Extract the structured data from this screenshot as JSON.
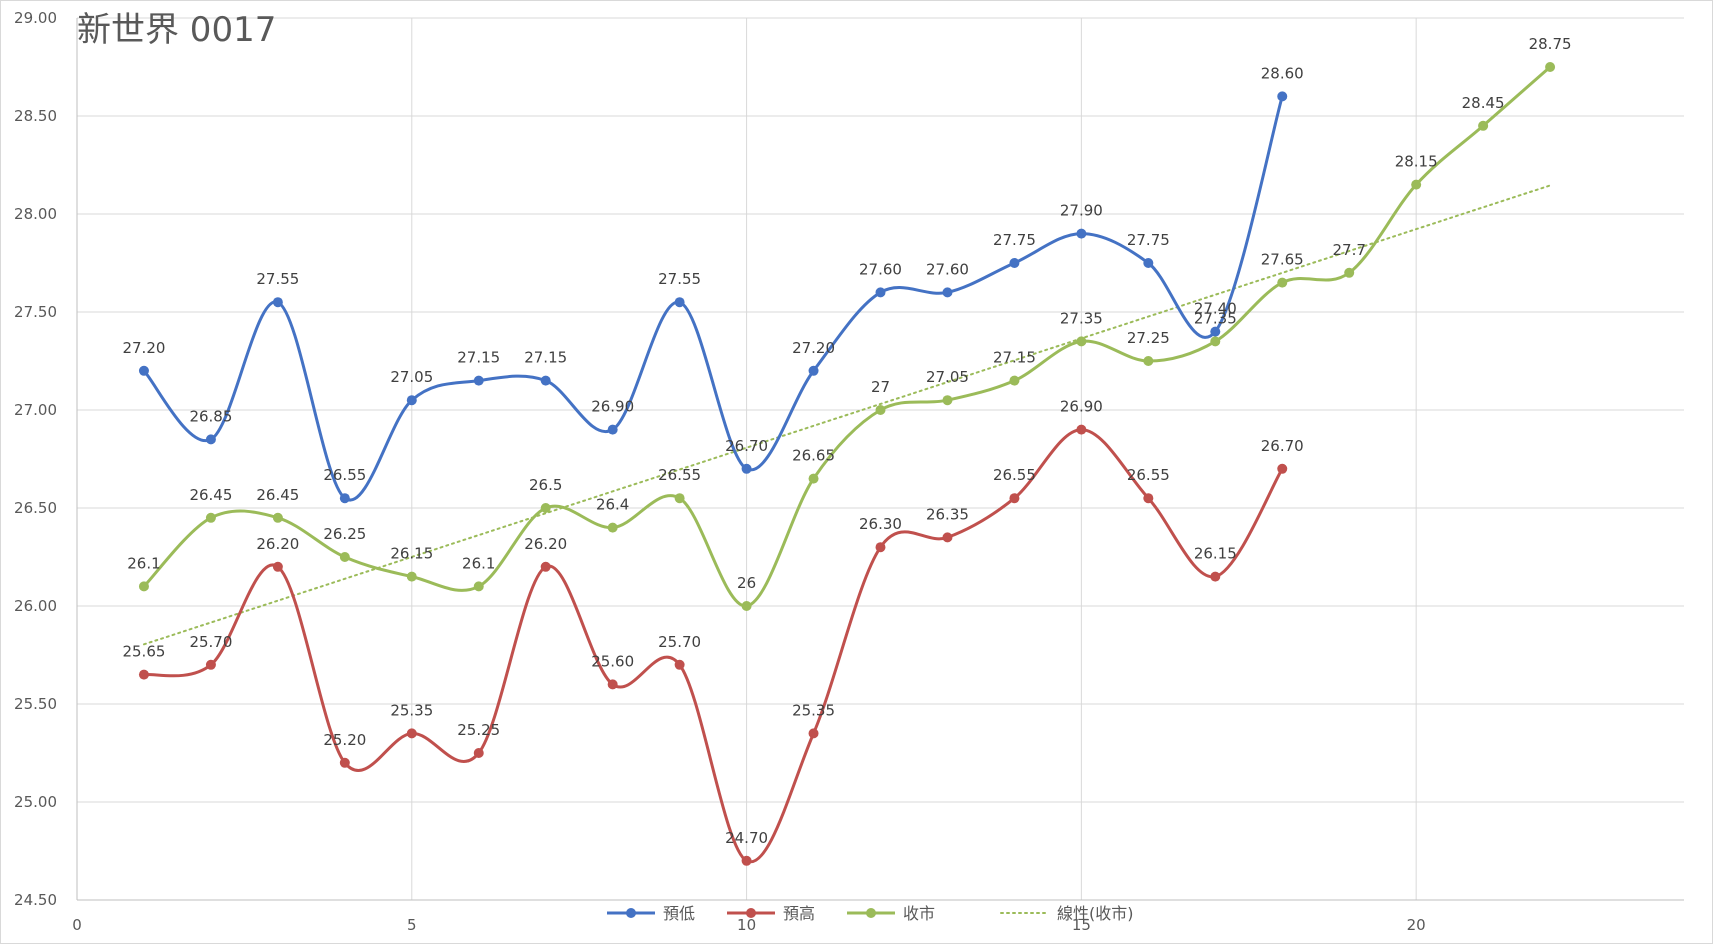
{
  "chart_data": {
    "type": "line",
    "title": "新世界 0017",
    "xlabel": "",
    "ylabel": "",
    "xlim": [
      0,
      24
    ],
    "ylim": [
      24.5,
      29.0
    ],
    "x_ticks": [
      0,
      5,
      10,
      15,
      20
    ],
    "y_ticks": [
      "24.50",
      "25.00",
      "25.50",
      "26.00",
      "26.50",
      "27.00",
      "27.50",
      "28.00",
      "28.50",
      "29.00"
    ],
    "grid": true,
    "legend_position": "bottom",
    "series": [
      {
        "name": "預低",
        "color": "#4472c4",
        "x": [
          1,
          2,
          3,
          4,
          5,
          6,
          7,
          8,
          9,
          10,
          11,
          12,
          13,
          14,
          15,
          16,
          17,
          18
        ],
        "values": [
          27.2,
          26.85,
          27.55,
          26.55,
          27.05,
          27.15,
          27.15,
          26.9,
          27.55,
          26.7,
          27.2,
          27.6,
          27.6,
          27.75,
          27.9,
          27.75,
          27.4,
          28.6
        ],
        "labels": [
          "27.20",
          "26.85",
          "27.55",
          "26.55",
          "27.05",
          "27.15",
          "27.15",
          "26.90",
          "27.55",
          "26.70",
          "27.20",
          "27.60",
          "27.60",
          "27.75",
          "27.90",
          "27.75",
          "27.40",
          "28.60"
        ]
      },
      {
        "name": "預高",
        "color": "#c0504d",
        "x": [
          1,
          2,
          3,
          4,
          5,
          6,
          7,
          8,
          9,
          10,
          11,
          12,
          13,
          14,
          15,
          16,
          17,
          18
        ],
        "values": [
          25.65,
          25.7,
          26.2,
          25.2,
          25.35,
          25.25,
          26.2,
          25.6,
          25.7,
          24.7,
          25.35,
          26.3,
          26.35,
          26.55,
          26.9,
          26.55,
          26.15,
          26.7
        ],
        "labels": [
          "25.65",
          "25.70",
          "26.20",
          "25.20",
          "25.35",
          "25.25",
          "26.20",
          "25.60",
          "25.70",
          "24.70",
          "25.35",
          "26.30",
          "26.35",
          "26.55",
          "26.90",
          "26.55",
          "26.15",
          "26.70"
        ]
      },
      {
        "name": "收市",
        "color": "#9bbb59",
        "x": [
          1,
          2,
          3,
          4,
          5,
          6,
          7,
          8,
          9,
          10,
          11,
          12,
          13,
          14,
          15,
          16,
          17,
          18,
          19,
          20,
          21,
          22
        ],
        "values": [
          26.1,
          26.45,
          26.45,
          26.25,
          26.15,
          26.1,
          26.5,
          26.4,
          26.55,
          26.0,
          26.65,
          27.0,
          27.05,
          27.15,
          27.35,
          27.25,
          27.35,
          27.65,
          27.7,
          28.15,
          28.45,
          28.75
        ],
        "labels": [
          "26.1",
          "26.45",
          "26.45",
          "26.25",
          "26.15",
          "26.1",
          "26.5",
          "26.4",
          "26.55",
          "26",
          "26.65",
          "27",
          "27.05",
          "27.15",
          "27.35",
          "27.25",
          "27.35",
          "27.65",
          "27.7",
          "28.15",
          "28.45",
          "28.75"
        ]
      }
    ],
    "trendline": {
      "name": "線性(收市)",
      "of_series": "收市",
      "type": "linear",
      "color": "#9bbb59",
      "style": "dotted",
      "x_range": [
        1,
        22
      ]
    }
  }
}
